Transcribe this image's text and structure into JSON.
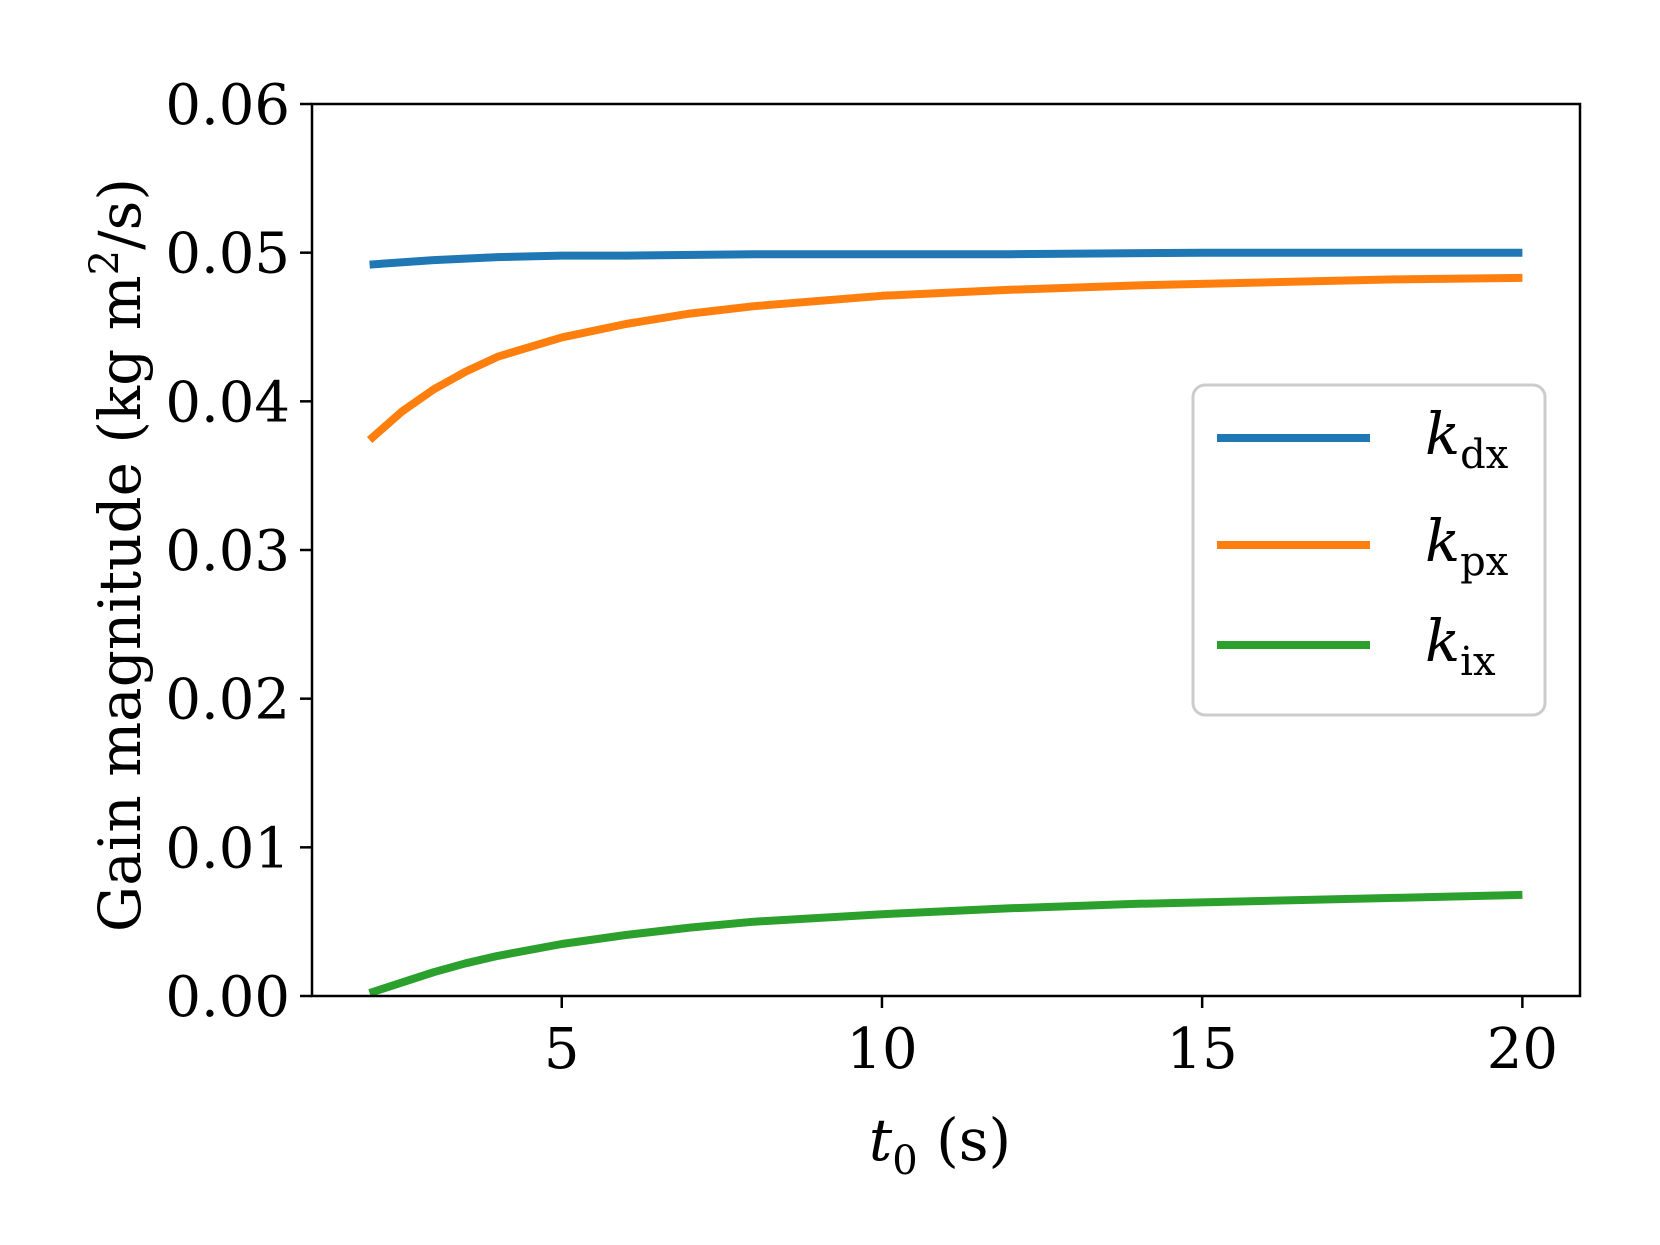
{
  "chart_data": {
    "type": "line",
    "xlabel": {
      "main": "t",
      "sub": "0",
      "unit": " (s)"
    },
    "ylabel": {
      "prefix": "Gain magnitude (kg m",
      "sup": "2",
      "suffix": "/s)"
    },
    "xlim": [
      1.1,
      20.9
    ],
    "ylim": [
      0.0,
      0.06
    ],
    "xticks": [
      5,
      10,
      15,
      20
    ],
    "xtick_labels": [
      "5",
      "10",
      "15",
      "20"
    ],
    "yticks": [
      0.0,
      0.01,
      0.02,
      0.03,
      0.04,
      0.05,
      0.06
    ],
    "ytick_labels": [
      "0.00",
      "0.01",
      "0.02",
      "0.03",
      "0.04",
      "0.05",
      "0.06"
    ],
    "grid": false,
    "legend_position": "center-right",
    "series": [
      {
        "name": "k_dx",
        "label_main": "k",
        "label_sub": "dx",
        "color": "#1f77b4",
        "x": [
          2,
          3,
          4,
          5,
          6,
          8,
          10,
          12,
          15,
          18,
          20
        ],
        "y": [
          0.0492,
          0.0495,
          0.0497,
          0.0498,
          0.0498,
          0.0499,
          0.0499,
          0.0499,
          0.05,
          0.05,
          0.05
        ]
      },
      {
        "name": "k_px",
        "label_main": "k",
        "label_sub": "px",
        "color": "#ff7f0e",
        "x": [
          2,
          2.5,
          3,
          3.5,
          4,
          5,
          6,
          7,
          8,
          10,
          12,
          14,
          16,
          18,
          20
        ],
        "y": [
          0.0374,
          0.0393,
          0.0408,
          0.042,
          0.043,
          0.0443,
          0.0452,
          0.0459,
          0.0464,
          0.0471,
          0.0475,
          0.0478,
          0.048,
          0.0482,
          0.0483
        ]
      },
      {
        "name": "k_ix",
        "label_main": "k",
        "label_sub": "ix",
        "color": "#2ca02c",
        "x": [
          2,
          2.5,
          3,
          3.5,
          4,
          5,
          6,
          7,
          8,
          10,
          12,
          14,
          16,
          18,
          20
        ],
        "y": [
          0.0002,
          0.0009,
          0.0016,
          0.0022,
          0.0027,
          0.0035,
          0.0041,
          0.0046,
          0.005,
          0.0055,
          0.0059,
          0.0062,
          0.0064,
          0.0066,
          0.0068
        ]
      }
    ]
  }
}
